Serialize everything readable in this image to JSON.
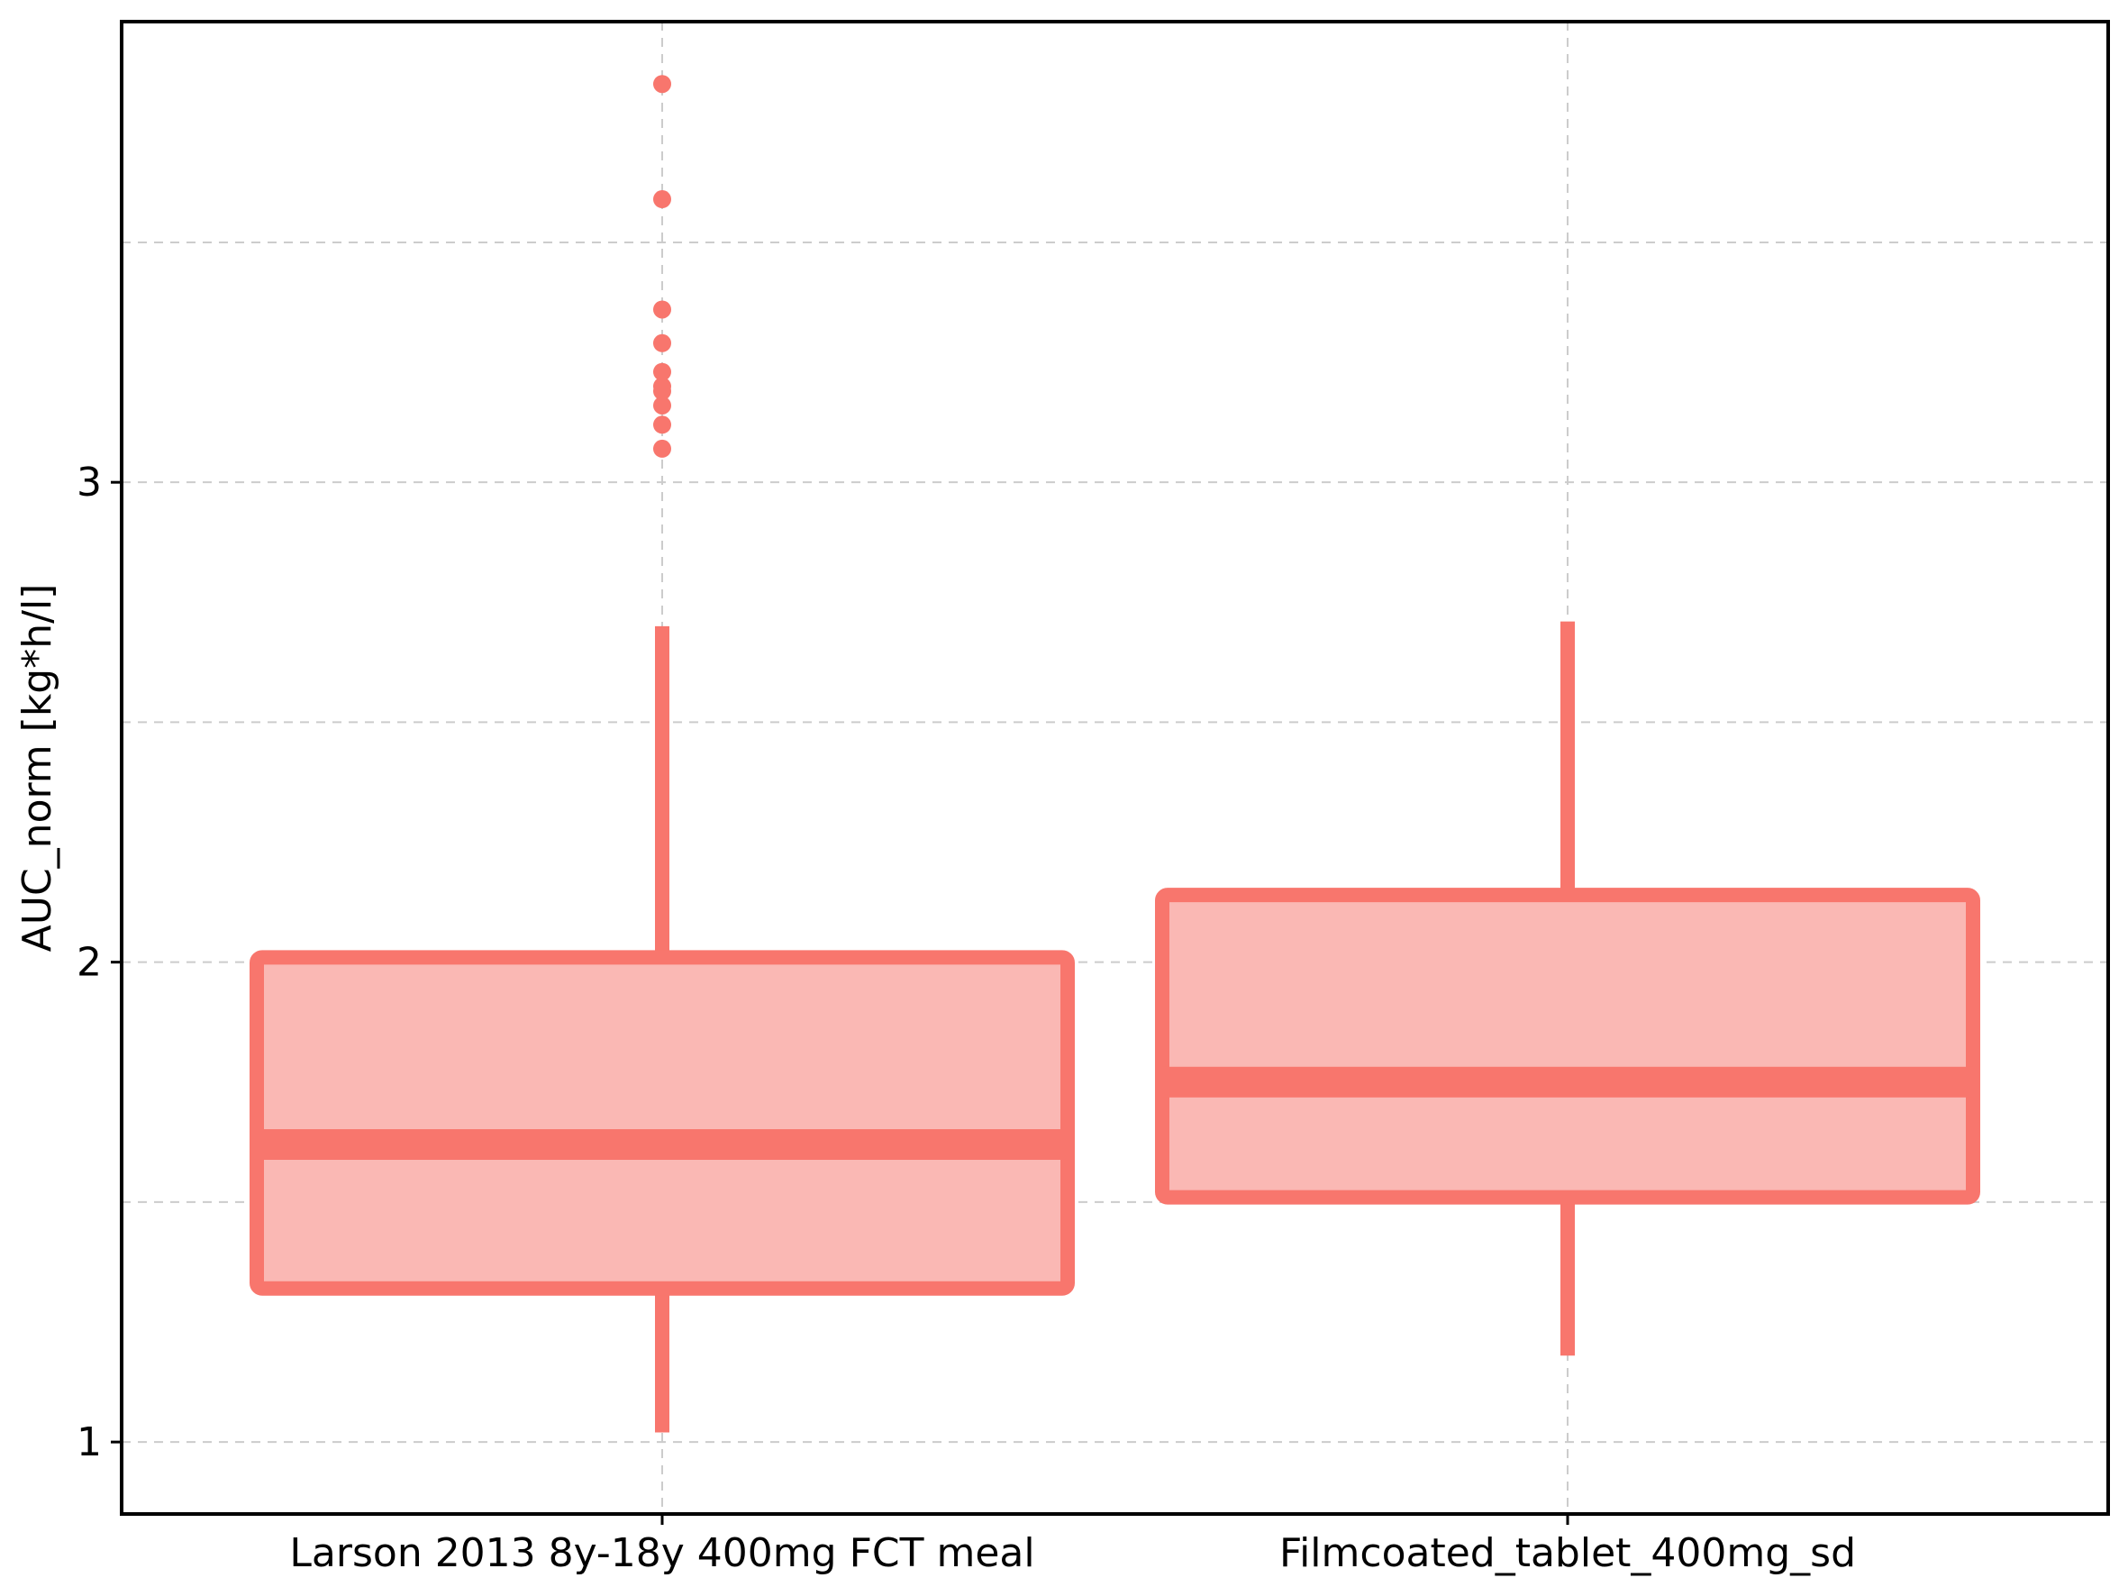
{
  "chart_data": {
    "type": "box",
    "title": "",
    "xlabel": "",
    "ylabel": "AUC_norm [kg*h/l]",
    "ylim": [
      0.85,
      3.96
    ],
    "yticks": [
      1,
      2,
      3
    ],
    "ytick_labels": [
      "1",
      "2",
      "3"
    ],
    "y_minor_gridlines": [
      1.5,
      2.5,
      3.5
    ],
    "grid": true,
    "legend": "none",
    "categories": [
      "Larson 2013 8y-18y 400mg FCT meal",
      "Filmcoated_tablet_400mg_sd"
    ],
    "boxes": [
      {
        "category": "Larson 2013 8y-18y 400mg FCT meal",
        "whisker_low": 1.02,
        "q1": 1.32,
        "median": 1.62,
        "q3": 2.01,
        "whisker_high": 2.7,
        "outliers": [
          3.07,
          3.12,
          3.16,
          3.19,
          3.2,
          3.23,
          3.29,
          3.36,
          3.59,
          3.83
        ]
      },
      {
        "category": "Filmcoated_tablet_400mg_sd",
        "whisker_low": 1.18,
        "q1": 1.51,
        "median": 1.75,
        "q3": 2.14,
        "whisker_high": 2.71,
        "outliers": []
      }
    ],
    "colors": {
      "box_line": "#f8766d",
      "box_fill": "#fab8b4",
      "grid": "#cccccc",
      "frame": "#000000"
    }
  }
}
